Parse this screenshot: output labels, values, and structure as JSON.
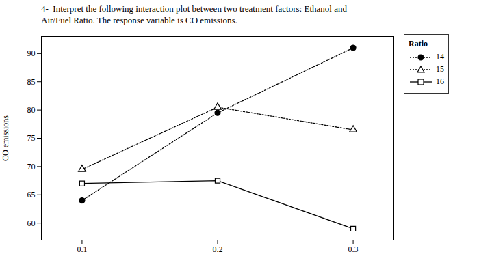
{
  "chart_data": {
    "type": "line",
    "title": "4-  Interpret the following interaction plot between two treatment factors: Ethanol and",
    "subtitle": "Air/Fuel Ratio. The response variable is CO emissions.",
    "ylabel": "CO emissions",
    "x": [
      0.1,
      0.2,
      0.3
    ],
    "xlim": [
      0.07,
      0.33
    ],
    "xticks": [
      0.1,
      0.2,
      0.3
    ],
    "ylim": [
      57,
      93
    ],
    "yticks": [
      60,
      65,
      70,
      75,
      80,
      85,
      90
    ],
    "grid": false,
    "legend": "upper right",
    "legend_title": "Ratio",
    "series": [
      {
        "name": "14",
        "values": [
          64,
          79.5,
          91
        ],
        "color": "black",
        "line_style": "dotted",
        "marker": "filled-circle"
      },
      {
        "name": "15",
        "values": [
          69.5,
          80.5,
          76.5
        ],
        "color": "black",
        "line_style": "dotted",
        "marker": "open-triangle"
      },
      {
        "name": "16",
        "values": [
          67,
          67.5,
          59
        ],
        "color": "black",
        "line_style": "solid",
        "marker": "open-square"
      }
    ]
  }
}
